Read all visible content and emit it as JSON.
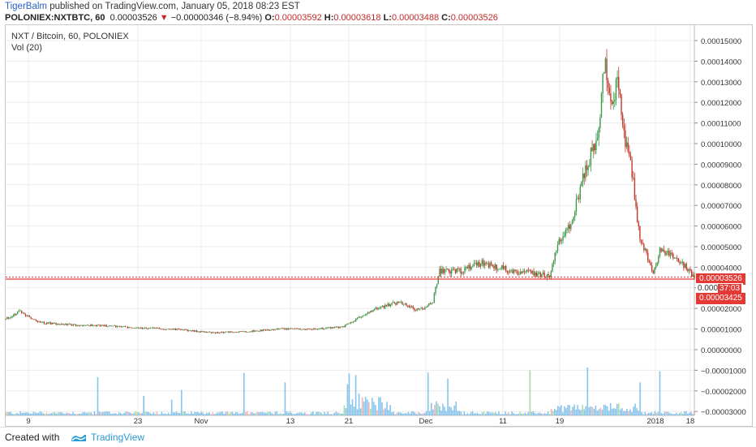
{
  "header": {
    "author": "TigerBalm",
    "published_text": "published on TradingView.com, January 05, 2018 08:23 EST",
    "symbol": "POLONIEX:NXTBTC, 60",
    "last": "0.00003526",
    "change_arrow": "▼",
    "change": "−0.00000346 (−8.94%)",
    "open_label": "O:",
    "open": "0.00003592",
    "high_label": "H:",
    "high": "0.00003618",
    "low_label": "L:",
    "low": "0.00003488",
    "close_label": "C:",
    "close": "0.00003526"
  },
  "legend": {
    "title": "NXT / Bitcoin, 60, POLONIEX",
    "volume": "Vol (20)"
  },
  "price_axis": {
    "ticks": [
      "0.00015000",
      "0.00014000",
      "0.00013000",
      "0.00012000",
      "0.00011000",
      "0.00010000",
      "0.00009000",
      "0.00008000",
      "0.00007000",
      "0.00006000",
      "0.00005000",
      "0.00004000",
      "0.00003000",
      "0.00002000",
      "0.00001000",
      "0.00000000",
      "−0.00001000",
      "−0.00002000",
      "−0.00003000"
    ]
  },
  "price_tags": {
    "last_price": "0.00003526",
    "countdown_prefix": "0.000",
    "countdown": "37:03",
    "ma_price": "0.00003425"
  },
  "time_axis": {
    "labels": [
      "9",
      "23",
      "Nov",
      "13",
      "21",
      "Dec",
      "11",
      "19",
      "2018",
      "18"
    ]
  },
  "footer": {
    "created_with": "Created with",
    "brand": "TradingView"
  },
  "colors": {
    "up": "#3c9a4a",
    "down": "#c0392b",
    "last_line": "#e53935",
    "volume": "#5fb0e6",
    "grid": "#ececec"
  },
  "chart_data": {
    "type": "line",
    "price_anchors": [
      {
        "t": 0.0,
        "price": 1.5e-05
      },
      {
        "t": 0.02,
        "price": 1.85e-05
      },
      {
        "t": 0.05,
        "price": 1.3e-05
      },
      {
        "t": 0.1,
        "price": 1.2e-05
      },
      {
        "t": 0.15,
        "price": 1.15e-05
      },
      {
        "t": 0.2,
        "price": 1.05e-05
      },
      {
        "t": 0.25,
        "price": 9.8e-06
      },
      {
        "t": 0.3,
        "price": 8.2e-06
      },
      {
        "t": 0.35,
        "price": 8.8e-06
      },
      {
        "t": 0.4,
        "price": 1e-05
      },
      {
        "t": 0.45,
        "price": 1e-05
      },
      {
        "t": 0.49,
        "price": 1.1e-05
      },
      {
        "t": 0.51,
        "price": 1.5e-05
      },
      {
        "t": 0.54,
        "price": 2e-05
      },
      {
        "t": 0.57,
        "price": 2.3e-05
      },
      {
        "t": 0.6,
        "price": 1.9e-05
      },
      {
        "t": 0.62,
        "price": 2.3e-05
      },
      {
        "t": 0.63,
        "price": 3.8e-05
      },
      {
        "t": 0.66,
        "price": 3.8e-05
      },
      {
        "t": 0.69,
        "price": 4.2e-05
      },
      {
        "t": 0.74,
        "price": 3.8e-05
      },
      {
        "t": 0.79,
        "price": 3.6e-05
      },
      {
        "t": 0.8,
        "price": 5e-05
      },
      {
        "t": 0.82,
        "price": 6e-05
      },
      {
        "t": 0.84,
        "price": 8.5e-05
      },
      {
        "t": 0.86,
        "price": 0.000105
      },
      {
        "t": 0.87,
        "price": 0.00014
      },
      {
        "t": 0.88,
        "price": 0.00012
      },
      {
        "t": 0.89,
        "price": 0.00013
      },
      {
        "t": 0.9,
        "price": 0.0001
      },
      {
        "t": 0.91,
        "price": 8.5e-05
      },
      {
        "t": 0.92,
        "price": 5.5e-05
      },
      {
        "t": 0.94,
        "price": 3.8e-05
      },
      {
        "t": 0.95,
        "price": 4.8e-05
      },
      {
        "t": 0.97,
        "price": 4.5e-05
      },
      {
        "t": 0.99,
        "price": 3.9e-05
      },
      {
        "t": 1.0,
        "price": 3.53e-05
      }
    ]
  }
}
